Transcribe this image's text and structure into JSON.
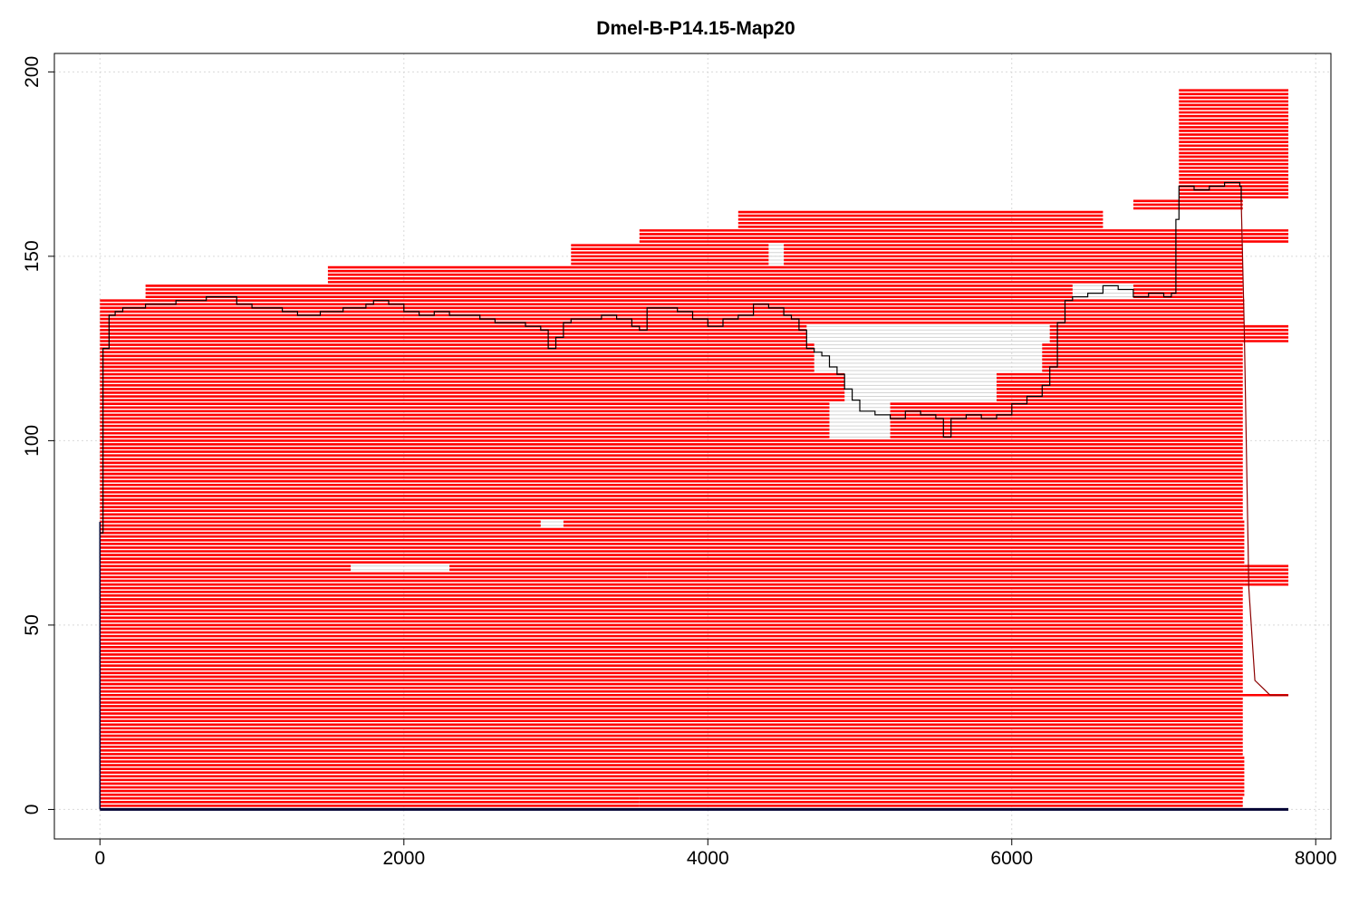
{
  "chart_data": {
    "type": "line",
    "title": "Dmel-B-P14.15-Map20",
    "xlabel": "",
    "ylabel": "",
    "xlim": [
      -300,
      8100
    ],
    "ylim": [
      -8,
      205
    ],
    "x_ticks": [
      0,
      2000,
      4000,
      6000,
      8000
    ],
    "y_ticks": [
      0,
      50,
      100,
      150,
      200
    ],
    "grid": true,
    "colors": {
      "reads": "#ff0000",
      "gaps": "#d3d3d3",
      "coverage": "#000000",
      "coverage_tail": "#8b0000",
      "reference": "#000033"
    },
    "reference": {
      "name": "reference",
      "start": 0,
      "end": 7820,
      "y": 0
    },
    "reads": [
      {
        "rows": [
          1,
          3
        ],
        "spans": [
          [
            0,
            3550
          ],
          [
            3550,
            7520
          ]
        ]
      },
      {
        "rows": [
          4,
          14
        ],
        "spans": [
          [
            0,
            7530
          ]
        ]
      },
      {
        "rows": [
          15,
          30
        ],
        "spans": [
          [
            0,
            7520
          ]
        ]
      },
      {
        "rows": [
          31,
          31
        ],
        "spans": [
          [
            0,
            7820
          ]
        ]
      },
      {
        "rows": [
          32,
          60
        ],
        "spans": [
          [
            0,
            7520
          ]
        ]
      },
      {
        "rows": [
          61,
          62
        ],
        "spans": [
          [
            0,
            7530
          ],
          [
            7530,
            7820
          ]
        ]
      },
      {
        "rows": [
          63,
          64
        ],
        "spans": [
          [
            0,
            3600
          ],
          [
            3600,
            7540
          ],
          [
            7540,
            7820
          ]
        ]
      },
      {
        "rows": [
          65,
          66
        ],
        "spans": [
          [
            0,
            1650
          ],
          [
            2300,
            7530
          ],
          [
            7530,
            7820
          ]
        ]
      },
      {
        "rows": [
          67,
          76
        ],
        "spans": [
          [
            0,
            7530
          ]
        ]
      },
      {
        "rows": [
          77,
          78
        ],
        "spans": [
          [
            0,
            2900
          ],
          [
            3050,
            7530
          ]
        ]
      },
      {
        "rows": [
          79,
          100
        ],
        "spans": [
          [
            0,
            7520
          ]
        ]
      },
      {
        "rows": [
          101,
          110
        ],
        "spans": [
          [
            0,
            4800
          ],
          [
            5200,
            7520
          ]
        ]
      },
      {
        "rows": [
          111,
          118
        ],
        "spans": [
          [
            0,
            4900
          ],
          [
            5900,
            7520
          ]
        ]
      },
      {
        "rows": [
          119,
          126
        ],
        "spans": [
          [
            0,
            4700
          ],
          [
            6200,
            7520
          ]
        ]
      },
      {
        "rows": [
          127,
          131
        ],
        "spans": [
          [
            0,
            4650
          ],
          [
            6250,
            7540
          ],
          [
            7540,
            7820
          ]
        ]
      },
      {
        "rows": [
          132,
          138
        ],
        "spans": [
          [
            0,
            7530
          ]
        ]
      },
      {
        "rows": [
          139,
          142
        ],
        "spans": [
          [
            300,
            6400
          ],
          [
            6800,
            7520
          ]
        ]
      },
      {
        "rows": [
          143,
          147
        ],
        "spans": [
          [
            1500,
            7520
          ]
        ]
      },
      {
        "rows": [
          148,
          153
        ],
        "spans": [
          [
            3100,
            4400
          ],
          [
            4500,
            7520
          ]
        ]
      },
      {
        "rows": [
          154,
          157
        ],
        "spans": [
          [
            3550,
            7520
          ],
          [
            7520,
            7820
          ]
        ]
      },
      {
        "rows": [
          158,
          162
        ],
        "spans": [
          [
            4200,
            6600
          ]
        ]
      },
      {
        "rows": [
          163,
          165
        ],
        "spans": [
          [
            6800,
            7520
          ]
        ]
      },
      {
        "rows": [
          166,
          195
        ],
        "spans": [
          [
            7100,
            7820
          ]
        ]
      }
    ],
    "coverage": {
      "x": [
        0,
        20,
        60,
        100,
        150,
        300,
        500,
        700,
        900,
        1000,
        1200,
        1300,
        1450,
        1600,
        1750,
        1800,
        1900,
        2000,
        2100,
        2200,
        2300,
        2400,
        2500,
        2600,
        2700,
        2800,
        2900,
        2950,
        3000,
        3050,
        3100,
        3200,
        3300,
        3400,
        3500,
        3550,
        3600,
        3700,
        3800,
        3900,
        4000,
        4100,
        4200,
        4300,
        4400,
        4500,
        4550,
        4600,
        4650,
        4700,
        4750,
        4800,
        4850,
        4900,
        4950,
        5000,
        5100,
        5200,
        5300,
        5400,
        5500,
        5550,
        5600,
        5700,
        5800,
        5900,
        6000,
        6100,
        6200,
        6250,
        6300,
        6350,
        6400,
        6500,
        6600,
        6700,
        6800,
        6900,
        7000,
        7050,
        7080,
        7100,
        7200,
        7300,
        7400,
        7500,
        7510,
        7530,
        7560,
        7600,
        7700,
        7820
      ],
      "y": [
        75,
        125,
        134,
        135,
        136,
        137,
        138,
        139,
        137,
        136,
        135,
        134,
        135,
        136,
        137,
        138,
        137,
        135,
        134,
        135,
        134,
        134,
        133,
        132,
        132,
        131,
        130,
        125,
        128,
        132,
        133,
        133,
        134,
        133,
        131,
        130,
        136,
        136,
        135,
        133,
        131,
        133,
        134,
        137,
        136,
        134,
        133,
        130,
        125,
        124,
        123,
        120,
        118,
        114,
        111,
        108,
        107,
        106,
        108,
        107,
        106,
        101,
        106,
        107,
        106,
        107,
        110,
        112,
        115,
        120,
        132,
        138,
        139,
        140,
        142,
        141,
        139,
        140,
        139,
        140,
        160,
        169,
        168,
        169,
        170,
        169,
        165,
        130,
        60,
        35,
        31,
        31
      ]
    }
  }
}
